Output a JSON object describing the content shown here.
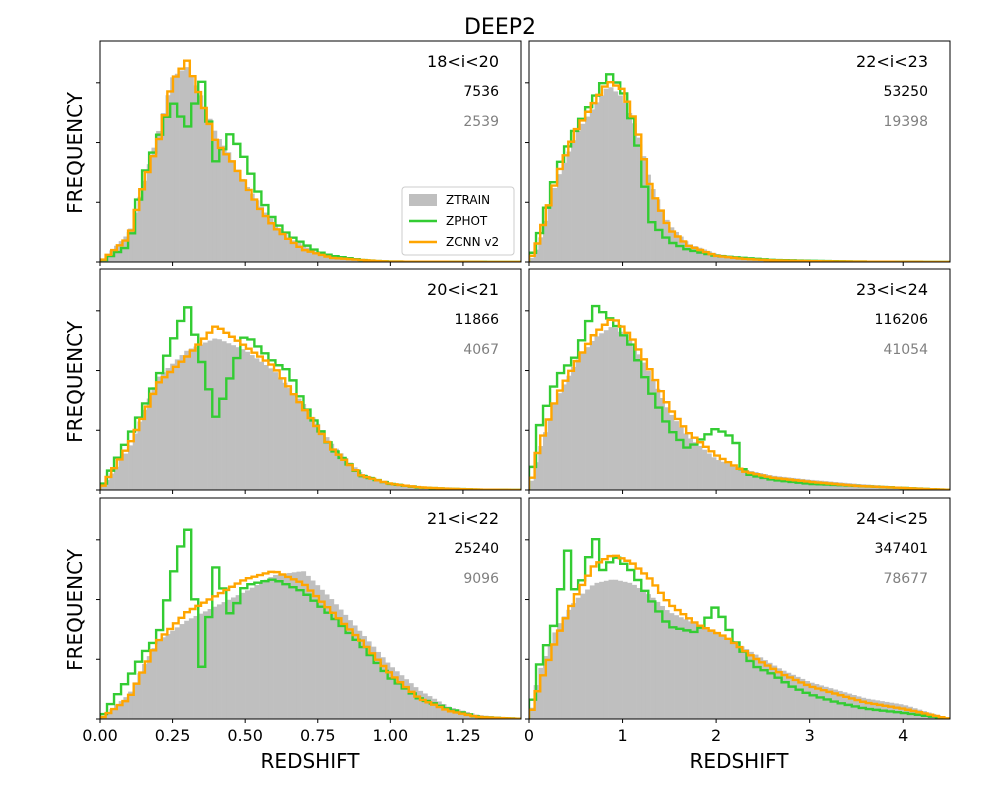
{
  "figure_title": "DEEP2",
  "colors": {
    "ztrain": "#bfbfbf",
    "zphot": "#33cc33",
    "zcnn": "#ffa500",
    "count_primary": "#000000",
    "count_secondary": "#808080"
  },
  "chart_data": {
    "type": "histogram-grid",
    "title": "DEEP2",
    "legend": {
      "placement": "center-right of top-left panel",
      "entries": [
        "ZTRAIN",
        "ZPHOT",
        "ZCNN v2"
      ]
    },
    "columns": [
      {
        "xlabel": "REDSHIFT",
        "xlim": [
          0.0,
          1.45
        ],
        "xticks": [
          0.0,
          0.25,
          0.5,
          0.75,
          1.0,
          1.25
        ],
        "xticklabels": [
          "0.00",
          "0.25",
          "0.50",
          "0.75",
          "1.00",
          "1.25"
        ]
      },
      {
        "xlabel": "REDSHIFT",
        "xlim": [
          0.0,
          4.5
        ],
        "xticks": [
          0,
          1,
          2,
          3,
          4
        ],
        "xticklabels": [
          "0",
          "1",
          "2",
          "3",
          "4"
        ]
      }
    ],
    "ylabel": "FREQUENCY",
    "panels": [
      {
        "row": 0,
        "col": 0,
        "label": "18<i<20",
        "count_primary": "7536",
        "count_secondary": "2539",
        "ztrain": {
          "x": [
            0.0,
            0.1,
            0.15,
            0.2,
            0.25,
            0.3,
            0.35,
            0.4,
            0.45,
            0.5,
            0.55,
            0.6,
            0.65,
            0.7,
            0.75,
            0.8,
            0.85,
            0.9,
            0.95,
            1.0,
            1.45
          ],
          "y": [
            0,
            14,
            38,
            63,
            90,
            95,
            80,
            62,
            52,
            38,
            28,
            19,
            12,
            8,
            5,
            3,
            2,
            1,
            0.8,
            0.4,
            0
          ]
        },
        "zphot": {
          "x": [
            0.0,
            0.1,
            0.15,
            0.2,
            0.25,
            0.3,
            0.35,
            0.4,
            0.45,
            0.5,
            0.55,
            0.6,
            0.65,
            0.7,
            0.75,
            0.8,
            0.85,
            0.9,
            0.95,
            1.0,
            1.45
          ],
          "y": [
            0,
            8,
            42,
            60,
            78,
            65,
            88,
            48,
            63,
            50,
            32,
            20,
            13,
            9,
            5,
            3,
            2,
            1,
            0.5,
            0.2,
            0
          ]
        },
        "zcnn": {
          "x": [
            0.0,
            0.1,
            0.15,
            0.2,
            0.25,
            0.3,
            0.35,
            0.4,
            0.45,
            0.5,
            0.55,
            0.6,
            0.65,
            0.7,
            0.75,
            0.8,
            0.85,
            0.9,
            0.95,
            1.0,
            1.45
          ],
          "y": [
            0,
            12,
            38,
            58,
            88,
            98,
            78,
            58,
            50,
            38,
            26,
            17,
            11,
            6,
            4,
            2,
            1.5,
            1,
            0.5,
            0.2,
            0
          ]
        }
      },
      {
        "row": 0,
        "col": 1,
        "label": "22<i<23",
        "count_primary": "53250",
        "count_secondary": "19398",
        "ztrain": {
          "x": [
            0.0,
            0.1,
            0.3,
            0.5,
            0.7,
            0.85,
            1.0,
            1.15,
            1.3,
            1.5,
            1.7,
            2.0,
            2.3,
            2.6,
            3.0,
            3.5,
            4.0,
            4.5
          ],
          "y": [
            0,
            8,
            40,
            62,
            76,
            86,
            80,
            65,
            38,
            18,
            9,
            4,
            2,
            1,
            0.5,
            0.2,
            0.1,
            0
          ]
        },
        "zphot": {
          "x": [
            0.0,
            0.1,
            0.3,
            0.5,
            0.7,
            0.85,
            1.0,
            1.15,
            1.3,
            1.5,
            1.7,
            2.0,
            2.3,
            2.6,
            3.0,
            3.5,
            4.0,
            4.5
          ],
          "y": [
            0,
            12,
            45,
            65,
            80,
            92,
            84,
            60,
            20,
            10,
            6,
            3,
            2,
            1,
            0.6,
            0.2,
            0.1,
            0
          ]
        },
        "zcnn": {
          "x": [
            0.0,
            0.1,
            0.3,
            0.5,
            0.7,
            0.85,
            1.0,
            1.15,
            1.3,
            1.5,
            1.7,
            2.0,
            2.3,
            2.6,
            3.0,
            3.5,
            4.0,
            4.5
          ],
          "y": [
            0,
            10,
            42,
            64,
            78,
            88,
            84,
            66,
            36,
            16,
            8,
            3,
            1.5,
            0.8,
            0.4,
            0.2,
            0.1,
            0
          ]
        }
      },
      {
        "row": 1,
        "col": 0,
        "label": "20<i<21",
        "count_primary": "11866",
        "count_secondary": "4067",
        "ztrain": {
          "x": [
            0.0,
            0.1,
            0.15,
            0.2,
            0.3,
            0.4,
            0.5,
            0.6,
            0.65,
            0.7,
            0.8,
            0.9,
            1.0,
            1.1,
            1.2,
            1.3,
            1.45
          ],
          "y": [
            0,
            20,
            38,
            55,
            68,
            74,
            68,
            58,
            50,
            42,
            22,
            8,
            3,
            1.5,
            0.8,
            0.3,
            0
          ]
        },
        "zphot": {
          "x": [
            0.0,
            0.1,
            0.15,
            0.2,
            0.3,
            0.4,
            0.5,
            0.6,
            0.65,
            0.7,
            0.8,
            0.9,
            1.0,
            1.1,
            1.2,
            1.3,
            1.45
          ],
          "y": [
            0,
            26,
            40,
            55,
            90,
            35,
            76,
            62,
            58,
            42,
            20,
            7,
            3,
            1.2,
            0.6,
            0.2,
            0
          ]
        },
        "zcnn": {
          "x": [
            0.0,
            0.1,
            0.15,
            0.2,
            0.3,
            0.4,
            0.5,
            0.6,
            0.65,
            0.7,
            0.8,
            0.9,
            1.0,
            1.1,
            1.2,
            1.3,
            1.45
          ],
          "y": [
            0,
            22,
            36,
            52,
            65,
            80,
            70,
            60,
            50,
            40,
            20,
            7,
            3,
            1.3,
            0.6,
            0.2,
            0
          ]
        }
      },
      {
        "row": 1,
        "col": 1,
        "label": "23<i<24",
        "count_primary": "116206",
        "count_secondary": "41054",
        "ztrain": {
          "x": [
            0.0,
            0.1,
            0.3,
            0.5,
            0.7,
            0.9,
            1.1,
            1.3,
            1.5,
            1.7,
            2.0,
            2.3,
            2.6,
            3.0,
            3.5,
            4.0,
            4.5
          ],
          "y": [
            0,
            18,
            45,
            62,
            74,
            80,
            72,
            56,
            38,
            26,
            15,
            10,
            7,
            5,
            3,
            1.5,
            0
          ]
        },
        "zphot": {
          "x": [
            0.0,
            0.1,
            0.3,
            0.5,
            0.7,
            0.9,
            1.1,
            1.3,
            1.5,
            1.7,
            2.0,
            2.2,
            2.3,
            2.6,
            3.0,
            3.5,
            4.0,
            4.5
          ],
          "y": [
            0,
            30,
            55,
            65,
            90,
            82,
            70,
            48,
            30,
            20,
            30,
            25,
            8,
            5,
            3,
            2,
            1,
            0
          ]
        },
        "zcnn": {
          "x": [
            0.0,
            0.1,
            0.3,
            0.5,
            0.7,
            0.9,
            1.1,
            1.3,
            1.5,
            1.7,
            2.0,
            2.3,
            2.6,
            3.0,
            3.5,
            4.0,
            4.5
          ],
          "y": [
            0,
            20,
            46,
            62,
            76,
            84,
            74,
            58,
            40,
            28,
            17,
            9,
            6,
            4,
            2,
            1,
            0
          ]
        }
      },
      {
        "row": 2,
        "col": 0,
        "label": "21<i<22",
        "count_primary": "25240",
        "count_secondary": "9096",
        "ztrain": {
          "x": [
            0.0,
            0.1,
            0.15,
            0.2,
            0.3,
            0.4,
            0.5,
            0.6,
            0.7,
            0.8,
            0.9,
            1.0,
            1.1,
            1.2,
            1.3,
            1.45
          ],
          "y": [
            0,
            12,
            26,
            38,
            48,
            55,
            62,
            70,
            72,
            58,
            42,
            26,
            14,
            6,
            2,
            0
          ]
        },
        "zphot": {
          "x": [
            0.0,
            0.1,
            0.15,
            0.2,
            0.25,
            0.3,
            0.35,
            0.4,
            0.45,
            0.5,
            0.6,
            0.7,
            0.8,
            0.9,
            1.0,
            1.1,
            1.2,
            1.3,
            1.45
          ],
          "y": [
            0,
            20,
            32,
            40,
            70,
            95,
            25,
            75,
            50,
            65,
            68,
            62,
            50,
            36,
            20,
            10,
            5,
            1,
            0
          ]
        },
        "zcnn": {
          "x": [
            0.0,
            0.1,
            0.15,
            0.2,
            0.3,
            0.4,
            0.5,
            0.6,
            0.7,
            0.8,
            0.9,
            1.0,
            1.1,
            1.2,
            1.3,
            1.45
          ],
          "y": [
            0,
            10,
            24,
            38,
            52,
            60,
            68,
            72,
            66,
            52,
            38,
            22,
            10,
            4,
            1,
            0
          ]
        }
      },
      {
        "row": 2,
        "col": 1,
        "label": "24<i<25",
        "count_primary": "347401",
        "count_secondary": "78677",
        "ztrain": {
          "x": [
            0.0,
            0.1,
            0.3,
            0.5,
            0.7,
            0.9,
            1.1,
            1.3,
            1.5,
            1.8,
            2.1,
            2.4,
            2.7,
            3.0,
            3.3,
            3.6,
            4.0,
            4.5
          ],
          "y": [
            0,
            22,
            45,
            58,
            66,
            68,
            66,
            60,
            52,
            46,
            40,
            32,
            24,
            18,
            14,
            10,
            7,
            0
          ]
        },
        "zphot": {
          "x": [
            0.0,
            0.1,
            0.3,
            0.4,
            0.5,
            0.6,
            0.7,
            0.8,
            0.9,
            1.1,
            1.3,
            1.5,
            1.8,
            2.0,
            2.2,
            2.4,
            2.6,
            2.8,
            3.0,
            3.3,
            3.6,
            4.0,
            4.5
          ],
          "y": [
            0,
            25,
            50,
            85,
            60,
            72,
            90,
            70,
            80,
            72,
            58,
            45,
            42,
            55,
            38,
            26,
            22,
            16,
            12,
            8,
            5,
            3,
            0
          ]
        },
        "zcnn": {
          "x": [
            0.0,
            0.1,
            0.3,
            0.5,
            0.7,
            0.9,
            1.1,
            1.3,
            1.5,
            1.8,
            2.1,
            2.4,
            2.7,
            3.0,
            3.3,
            3.6,
            4.0,
            4.5
          ],
          "y": [
            0,
            15,
            40,
            60,
            75,
            80,
            76,
            68,
            56,
            46,
            40,
            30,
            22,
            16,
            12,
            8,
            5,
            0
          ]
        }
      }
    ]
  }
}
